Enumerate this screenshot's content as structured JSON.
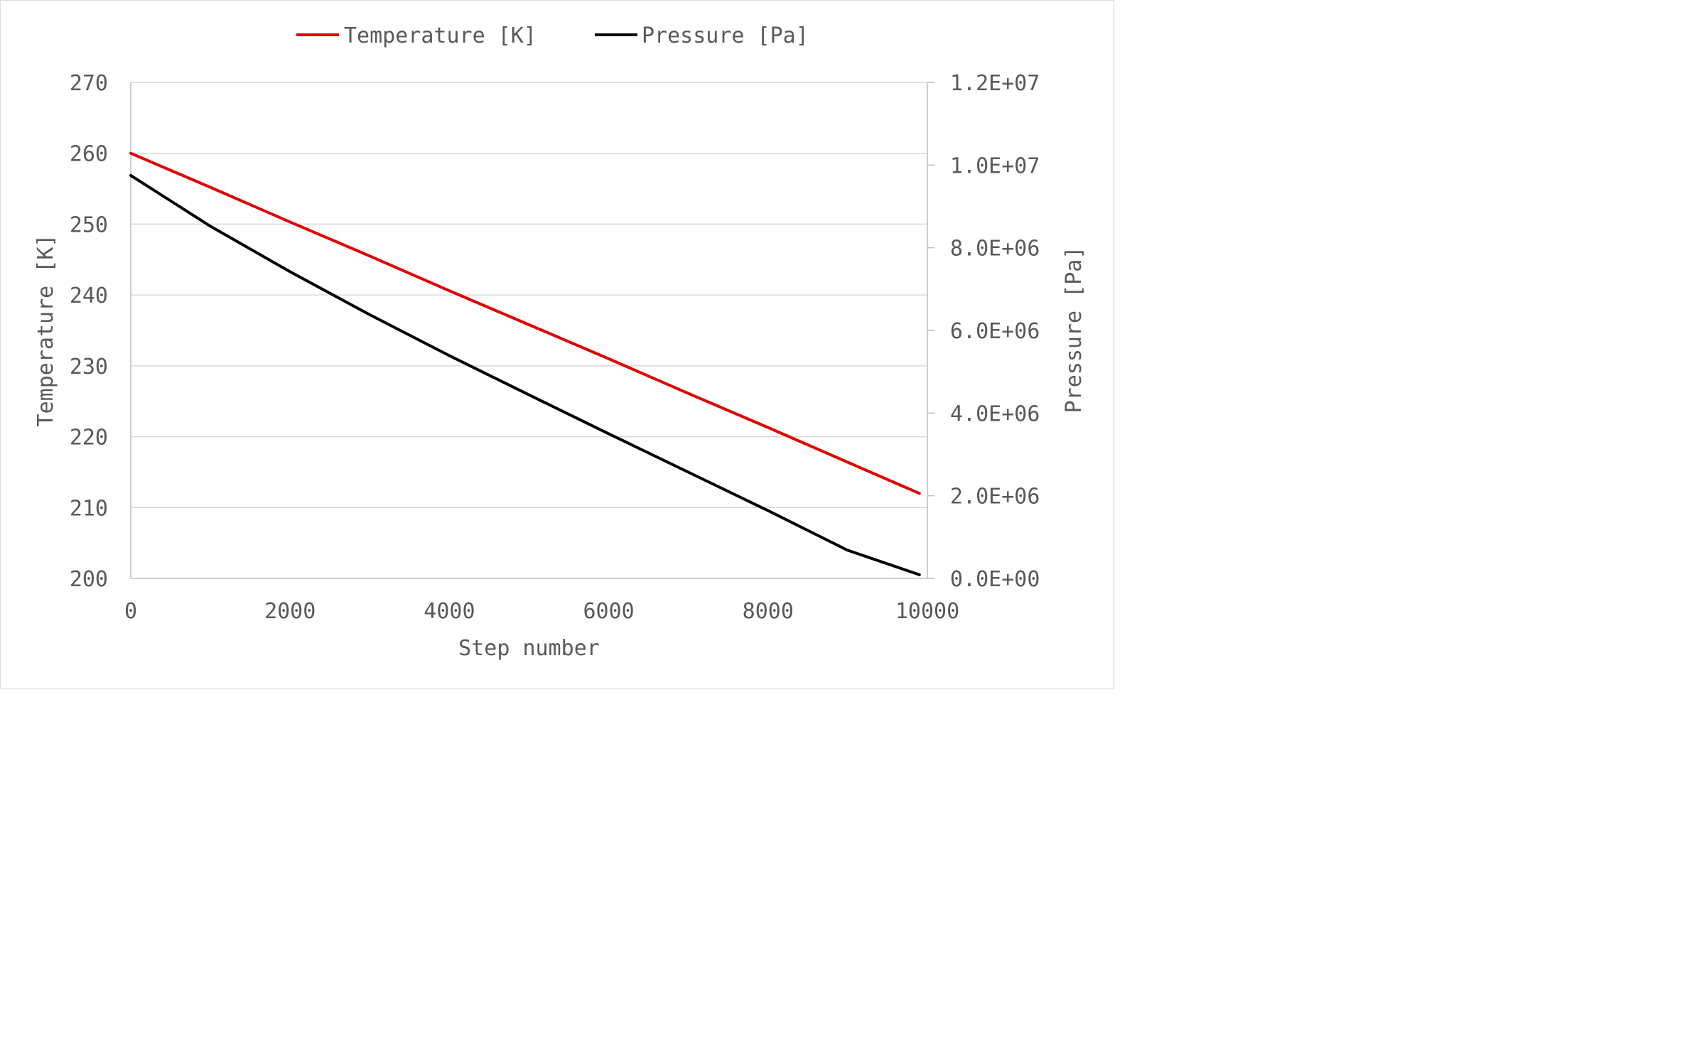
{
  "chart_data": {
    "type": "line",
    "title": "",
    "xlabel": "Step number",
    "ylabel_left": "Temperature [K]",
    "ylabel_right": "Pressure [Pa]",
    "xlim": [
      0,
      10000
    ],
    "xticks": [
      0,
      2000,
      4000,
      6000,
      8000,
      10000
    ],
    "xtick_labels": [
      "0",
      "2000",
      "4000",
      "6000",
      "8000",
      "10000"
    ],
    "ylim_left": [
      200,
      270
    ],
    "yticks_left": [
      200,
      210,
      220,
      230,
      240,
      250,
      260,
      270
    ],
    "ytick_labels_left": [
      "200",
      "210",
      "220",
      "230",
      "240",
      "250",
      "260",
      "270"
    ],
    "ylim_right": [
      0,
      12000000
    ],
    "yticks_right": [
      0,
      2000000,
      4000000,
      6000000,
      8000000,
      10000000,
      12000000
    ],
    "ytick_labels_right": [
      "0.0E+00",
      "2.0E+06",
      "4.0E+06",
      "6.0E+06",
      "8.0E+06",
      "1.0E+07",
      "1.2E+07"
    ],
    "grid": true,
    "legend_position": "top",
    "series": [
      {
        "name": "Temperature [K]",
        "axis": "left",
        "color": "#e00000",
        "x": [
          0,
          1000,
          2000,
          3000,
          4000,
          5000,
          6000,
          7000,
          8000,
          9000,
          9900
        ],
        "values": [
          260.0,
          255.2,
          250.3,
          245.5,
          240.6,
          235.8,
          231.0,
          226.1,
          221.3,
          216.4,
          212.0
        ]
      },
      {
        "name": "Pressure [Pa]",
        "axis": "right",
        "color": "#000000",
        "x": [
          0,
          1000,
          2000,
          3000,
          4000,
          5000,
          6000,
          7000,
          8000,
          9000,
          9900
        ],
        "values": [
          9750000,
          8520000,
          7420000,
          6380000,
          5390000,
          4440000,
          3500000,
          2570000,
          1640000,
          680000,
          90000
        ]
      }
    ]
  }
}
